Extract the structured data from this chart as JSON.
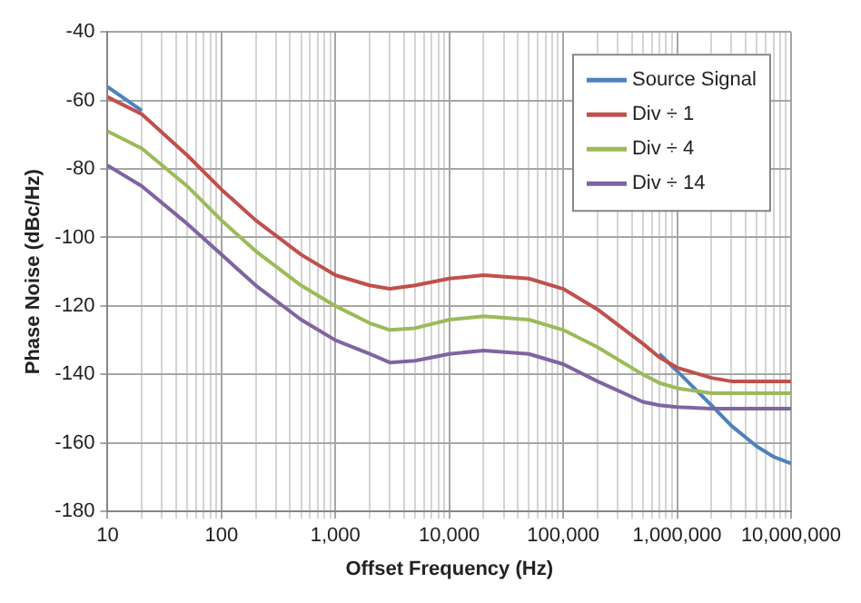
{
  "chart_data": {
    "type": "line",
    "xlabel": "Offset Frequency (Hz)",
    "ylabel": "Phase Noise (dBc/Hz)",
    "log": "x",
    "x": [
      10,
      20,
      50,
      100,
      200,
      500,
      1000,
      2000,
      3000,
      5000,
      10000,
      20000,
      50000,
      100000,
      200000,
      500000,
      700000,
      1000000,
      2000000,
      3000000,
      5000000,
      7000000,
      10000000
    ],
    "series": [
      {
        "name": "Source Signal",
        "color": "#4f81bd",
        "values": [
          -56,
          -63,
          null,
          null,
          null,
          null,
          null,
          null,
          null,
          null,
          null,
          null,
          null,
          null,
          null,
          null,
          -134,
          -139,
          -149,
          -155,
          -161,
          -164,
          -166
        ]
      },
      {
        "name": "Div ÷ 1",
        "color": "#c0504d",
        "values": [
          -59,
          -64,
          -76,
          -86,
          -95,
          -105,
          -111,
          -114,
          -115,
          -114,
          -112,
          -111,
          -112,
          -115,
          -121,
          -131,
          -135,
          -138,
          -141,
          -142,
          -142,
          -142,
          -142
        ]
      },
      {
        "name": "Div ÷ 4",
        "color": "#9bbb59",
        "values": [
          -69,
          -74,
          -85,
          -95,
          -104,
          -114,
          -120,
          -125,
          -127,
          -126.5,
          -124,
          -123,
          -124,
          -127,
          -132,
          -140,
          -142.5,
          -144,
          -145.5,
          -145.5,
          -145.5,
          -145.5,
          -145.5
        ]
      },
      {
        "name": "Div ÷ 14",
        "color": "#8064a2",
        "values": [
          -79,
          -85,
          -96,
          -105,
          -114,
          -124,
          -130,
          -134,
          -136.5,
          -136,
          -134,
          -133,
          -134,
          -137,
          -142,
          -148,
          -149,
          -149.5,
          -150,
          -150,
          -150,
          -150,
          -150
        ]
      }
    ],
    "xlim": [
      10,
      10000000
    ],
    "xticks": [
      10,
      {
        "value": 20,
        "label": null
      },
      {
        "value": 30,
        "label": null
      },
      {
        "value": 40,
        "label": null
      },
      {
        "value": 50,
        "label": null
      },
      {
        "value": 60,
        "label": null
      },
      {
        "value": 70,
        "label": null
      },
      {
        "value": 80,
        "label": null
      },
      {
        "value": 90,
        "label": null
      },
      100,
      {
        "value": 200,
        "label": null
      },
      {
        "value": 300,
        "label": null
      },
      {
        "value": 400,
        "label": null
      },
      {
        "value": 500,
        "label": null
      },
      {
        "value": 600,
        "label": null
      },
      {
        "value": 700,
        "label": null
      },
      {
        "value": 800,
        "label": null
      },
      {
        "value": 900,
        "label": null
      },
      {
        "value": 1000,
        "label": "1,000"
      },
      {
        "value": 2000,
        "label": null
      },
      {
        "value": 3000,
        "label": null
      },
      {
        "value": 4000,
        "label": null
      },
      {
        "value": 5000,
        "label": null
      },
      {
        "value": 6000,
        "label": null
      },
      {
        "value": 7000,
        "label": null
      },
      {
        "value": 8000,
        "label": null
      },
      {
        "value": 9000,
        "label": null
      },
      {
        "value": 10000,
        "label": "10,000"
      },
      {
        "value": 20000,
        "label": null
      },
      {
        "value": 30000,
        "label": null
      },
      {
        "value": 40000,
        "label": null
      },
      {
        "value": 50000,
        "label": null
      },
      {
        "value": 60000,
        "label": null
      },
      {
        "value": 70000,
        "label": null
      },
      {
        "value": 80000,
        "label": null
      },
      {
        "value": 90000,
        "label": null
      },
      {
        "value": 100000,
        "label": "100,000"
      },
      {
        "value": 200000,
        "label": null
      },
      {
        "value": 300000,
        "label": null
      },
      {
        "value": 400000,
        "label": null
      },
      {
        "value": 500000,
        "label": null
      },
      {
        "value": 600000,
        "label": null
      },
      {
        "value": 700000,
        "label": null
      },
      {
        "value": 800000,
        "label": null
      },
      {
        "value": 900000,
        "label": null
      },
      {
        "value": 1000000,
        "label": "1,000,000"
      },
      {
        "value": 2000000,
        "label": null
      },
      {
        "value": 3000000,
        "label": null
      },
      {
        "value": 4000000,
        "label": null
      },
      {
        "value": 5000000,
        "label": null
      },
      {
        "value": 6000000,
        "label": null
      },
      {
        "value": 7000000,
        "label": null
      },
      {
        "value": 8000000,
        "label": null
      },
      {
        "value": 9000000,
        "label": null
      },
      {
        "value": 10000000,
        "label": "10,000,000"
      }
    ],
    "ylim": [
      -180,
      -40
    ],
    "yticks": [
      -180,
      -160,
      -140,
      -120,
      -100,
      -80,
      -60,
      -40
    ],
    "grid": true,
    "legend": "top right",
    "marker": "none",
    "line_style": "solid"
  }
}
